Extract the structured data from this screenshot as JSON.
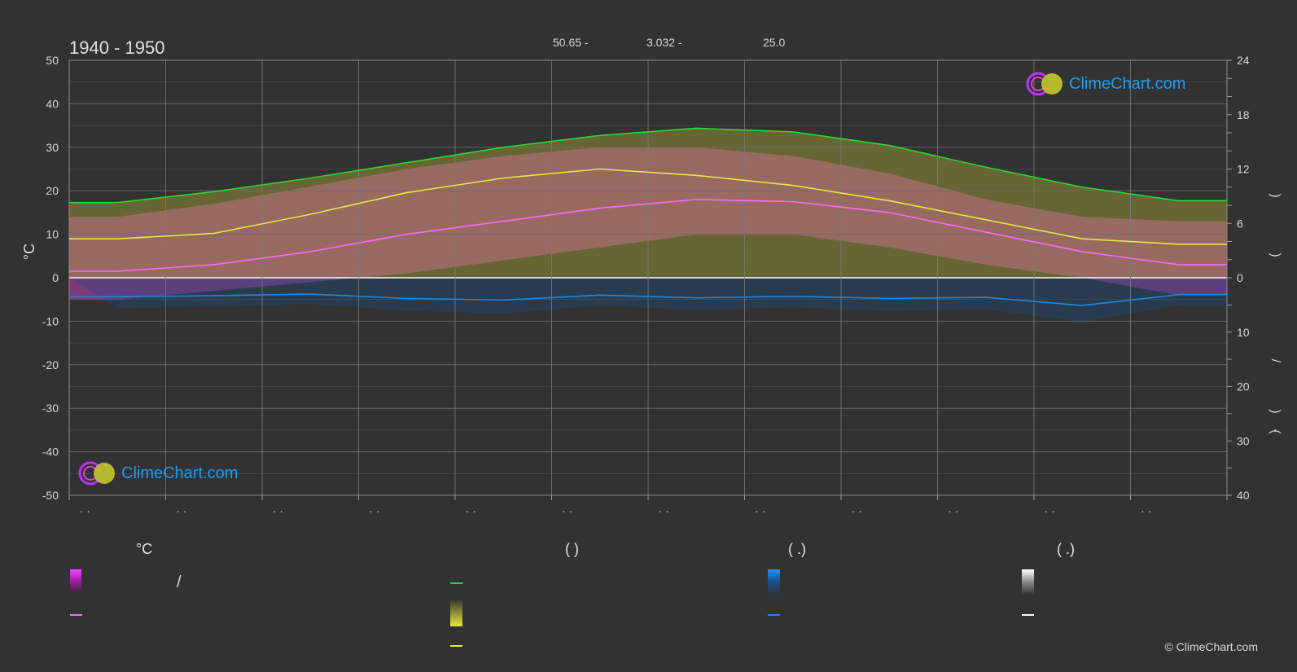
{
  "header": {
    "title": "1940 - 1950",
    "coord_a": "50.65 -",
    "coord_b": "3.032 -",
    "coord_c": "25.0"
  },
  "legend": {
    "temp_heading": "°C",
    "sun_heading": "(          )",
    "rain_heading": "(    .)",
    "snow_heading": "(    .)",
    "slash": "/"
  },
  "copyright": "© ClimeChart.com",
  "logo_text": "ClimeChart.com",
  "colors": {
    "background": "#323232",
    "daylight": "#2cd82c",
    "sunshine": "#e8e840",
    "temp_mean": "#ff66ff",
    "temp_band": "#e040d0",
    "sun_band": "#c8c83a",
    "rain": "#1e88e5",
    "snow": "#ffffff"
  },
  "chart_data": {
    "type": "line",
    "months": 12,
    "month_tick_labels": [
      "· ·",
      "· ·",
      "· ·",
      "· ·",
      "· ·",
      "· ·",
      "· ·",
      "· ·",
      "· ·",
      "· ·",
      "· ·",
      "· ·"
    ],
    "y_left": {
      "label": "°C",
      "lim": [
        -50,
        50
      ],
      "ticks": [
        50,
        40,
        30,
        20,
        10,
        0,
        -10,
        -20,
        -30,
        -40,
        -50
      ]
    },
    "y_right_top": {
      "lim": [
        0,
        24
      ],
      "ticks": [
        24,
        18,
        12,
        6,
        0
      ]
    },
    "y_right_bottom": {
      "lim": [
        0,
        40
      ],
      "ticks": [
        10,
        20,
        30,
        40
      ]
    },
    "y_right_labels": [
      ")",
      ")",
      "/",
      ")",
      "·",
      "("
    ],
    "series": [
      {
        "values": [
          8.3,
          9.5,
          11.0,
          12.7,
          14.4,
          15.7,
          16.5,
          16.1,
          14.6,
          12.2,
          10.0,
          8.5
        ],
        "axis": "right_top"
      },
      {
        "values": [
          4.3,
          4.9,
          7.0,
          9.4,
          11.0,
          12.0,
          11.3,
          10.2,
          8.5,
          6.4,
          4.3,
          3.7
        ],
        "axis": "right_top"
      },
      {
        "values": [
          1.5,
          3.0,
          6.0,
          10.0,
          13.0,
          16.0,
          18.0,
          17.5,
          15.0,
          10.5,
          6.0,
          3.0
        ],
        "axis": "left"
      },
      {
        "values": [
          3.5,
          3.3,
          3.0,
          3.8,
          4.1,
          3.2,
          3.7,
          3.4,
          3.8,
          3.6,
          5.1,
          3.1
        ],
        "axis": "right_bottom"
      }
    ],
    "band_temp_max": [
      14,
      17,
      21,
      25,
      28,
      30,
      30,
      28,
      24,
      18,
      14,
      13
    ],
    "band_temp_min": [
      -5,
      -3,
      -1,
      1,
      4,
      7,
      10,
      10,
      7,
      3,
      0,
      -4
    ]
  }
}
